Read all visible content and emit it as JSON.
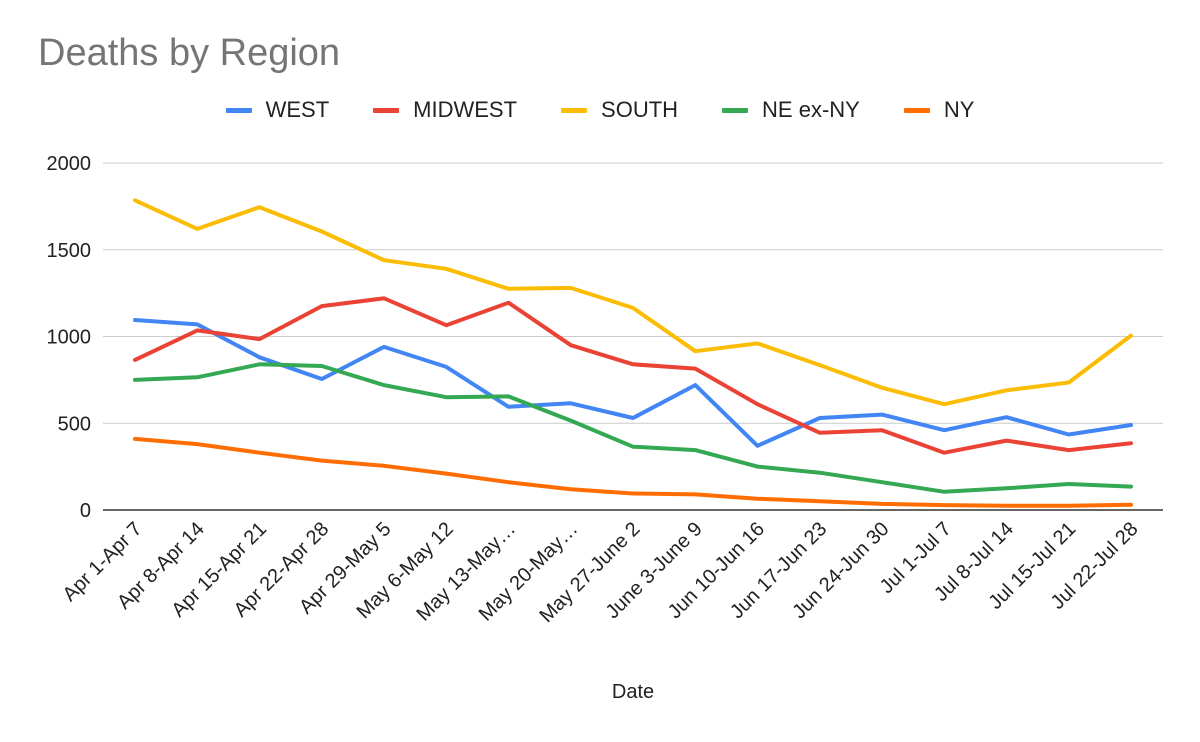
{
  "chart_data": {
    "type": "line",
    "title": "Deaths by Region",
    "xlabel": "Date",
    "ylabel": "",
    "ylim": [
      0,
      2000
    ],
    "yticks": [
      0,
      500,
      1000,
      1500,
      2000
    ],
    "categories": [
      "Apr 1-Apr 7",
      "Apr 8-Apr 14",
      "Apr 15-Apr 21",
      "Apr 22-Apr 28",
      "Apr 29-May 5",
      "May 6-May 12",
      "May 13-May…",
      "May 20-May…",
      "May 27-June 2",
      "June 3-June 9",
      "Jun 10-Jun 16",
      "Jun 17-Jun 23",
      "Jun 24-Jun 30",
      "Jul 1-Jul 7",
      "Jul 8-Jul 14",
      "Jul 15-Jul 21",
      "Jul 22-Jul 28"
    ],
    "series": [
      {
        "name": "WEST",
        "color": "#4285F4",
        "values": [
          1095,
          1070,
          880,
          755,
          940,
          825,
          595,
          615,
          530,
          720,
          370,
          530,
          550,
          460,
          535,
          435,
          490
        ]
      },
      {
        "name": "MIDWEST",
        "color": "#EA4335",
        "values": [
          865,
          1035,
          985,
          1175,
          1220,
          1065,
          1195,
          950,
          840,
          815,
          610,
          445,
          460,
          330,
          400,
          345,
          385
        ]
      },
      {
        "name": "SOUTH",
        "color": "#FBBC04",
        "values": [
          1785,
          1620,
          1745,
          1605,
          1440,
          1390,
          1275,
          1280,
          1165,
          915,
          960,
          835,
          705,
          610,
          690,
          735,
          1005
        ]
      },
      {
        "name": "NE ex-NY",
        "color": "#34A853",
        "values": [
          750,
          765,
          840,
          830,
          720,
          650,
          655,
          515,
          365,
          345,
          250,
          215,
          160,
          105,
          125,
          150,
          135
        ]
      },
      {
        "name": "NY",
        "color": "#FF6D01",
        "values": [
          410,
          380,
          330,
          285,
          255,
          210,
          160,
          120,
          95,
          90,
          65,
          50,
          35,
          28,
          25,
          25,
          30
        ]
      }
    ]
  }
}
